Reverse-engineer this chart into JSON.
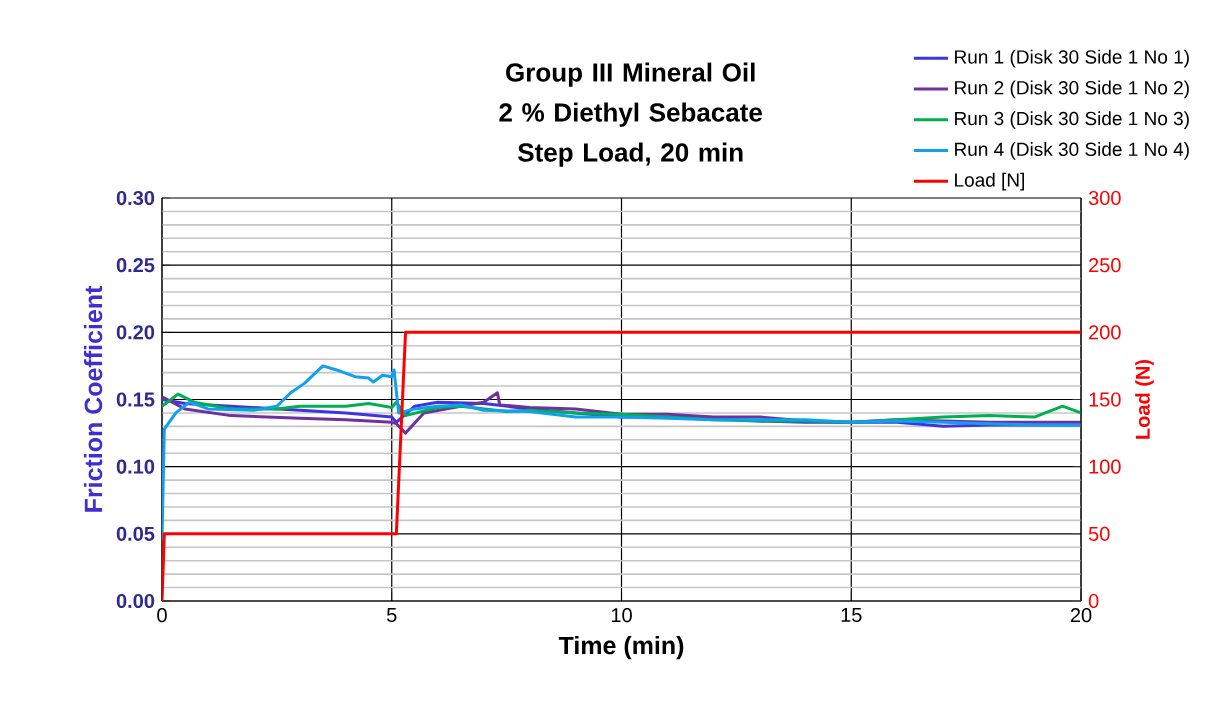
{
  "chart_data": {
    "type": "line",
    "title": "Group III Mineral Oil 2 % Diethyl Sebacate Step Load, 20 min",
    "xlabel": "Time (min)",
    "ylabel": "Friction Coefficient",
    "y2label": "Load (N)",
    "xlim": [
      0,
      20
    ],
    "xticks": [
      0,
      5,
      10,
      15,
      20
    ],
    "ylim": [
      0,
      0.3
    ],
    "yticks": [
      {
        "value": 0,
        "label": "0.00"
      },
      {
        "value": 0.05,
        "label": "0.05"
      },
      {
        "value": 0.1,
        "label": "0.10"
      },
      {
        "value": 0.15,
        "label": "0.15"
      },
      {
        "value": 0.2,
        "label": "0.20"
      },
      {
        "value": 0.25,
        "label": "0.25"
      },
      {
        "value": 0.3,
        "label": "0.30"
      }
    ],
    "y2lim": [
      0,
      300
    ],
    "y2ticks": [
      0,
      50,
      100,
      150,
      200,
      250,
      300
    ],
    "grid": true,
    "legend": "top right",
    "marker": "none",
    "line_style": "solid",
    "series": [
      {
        "name": "Run 1 (Disk 30 Side 1 No 1)",
        "color": "#4033e0",
        "x": [
          0,
          0.5,
          1.5,
          3,
          4,
          5,
          5.1,
          5.5,
          6,
          7,
          8,
          9,
          10,
          11,
          12,
          13,
          14,
          15,
          16,
          17,
          18,
          19,
          20
        ],
        "values": [
          0.15,
          0.147,
          null,
          0.142,
          0.14,
          0.137,
          0.133,
          0.145,
          0.148,
          0.147,
          0.143,
          0.14,
          0.137,
          0.137,
          0.136,
          0.134,
          0.133,
          0.133,
          0.133,
          0.13,
          0.131,
          0.131,
          0.131
        ]
      },
      {
        "name": "Run 2 (Disk 30 Side 1 No 2)",
        "color": "#7030a0",
        "x": [
          0,
          0.5,
          1.5,
          3,
          4,
          5,
          5.1,
          5.3,
          5.7,
          6.5,
          7,
          7.3,
          7.35,
          8,
          9,
          10,
          11,
          12,
          13,
          14,
          15,
          16,
          17,
          18,
          19,
          20
        ],
        "values": [
          0.152,
          0.143,
          0.138,
          0.136,
          0.135,
          0.133,
          0.132,
          0.125,
          0.14,
          0.145,
          0.148,
          0.155,
          0.146,
          0.144,
          0.143,
          0.139,
          0.139,
          0.137,
          0.137,
          0.134,
          0.133,
          0.135,
          0.134,
          0.133,
          0.133,
          0.133
        ]
      },
      {
        "name": "Run 3 (Disk 30 Side 1 No 3)",
        "color": "#00b050",
        "x": [
          0,
          0.35,
          0.7,
          1.5,
          2.5,
          3,
          4,
          4.5,
          5,
          5.1,
          5.3,
          6,
          6.5,
          7.5,
          8,
          9,
          10,
          11,
          12,
          13,
          14,
          15,
          16,
          17,
          18,
          19,
          19.6,
          20
        ],
        "values": [
          0.145,
          0.154,
          0.148,
          0.143,
          0.143,
          0.145,
          0.145,
          0.147,
          0.144,
          0.148,
          0.138,
          0.144,
          0.145,
          0.141,
          0.142,
          0.14,
          0.139,
          0.137,
          0.135,
          0.134,
          0.134,
          0.133,
          0.135,
          0.137,
          0.138,
          0.137,
          0.145,
          0.14
        ]
      },
      {
        "name": "Run 4 (Disk 30 Side 1 No 4)",
        "color": "#0fa0f0",
        "x": [
          0,
          0.05,
          0.3,
          0.6,
          1,
          2,
          2.5,
          2.8,
          3.1,
          3.5,
          3.8,
          4.2,
          4.5,
          4.6,
          4.8,
          5,
          5.05,
          5.15,
          5.5,
          6,
          6.5,
          7,
          8,
          9,
          10,
          11,
          12,
          13,
          14,
          15,
          16,
          17,
          18,
          19,
          20
        ],
        "values": [
          0.045,
          0.128,
          0.14,
          0.148,
          0.143,
          0.142,
          0.145,
          0.155,
          0.162,
          0.175,
          0.172,
          0.167,
          0.166,
          0.163,
          0.168,
          0.167,
          0.172,
          0.14,
          0.143,
          0.145,
          0.146,
          0.142,
          0.141,
          0.137,
          0.137,
          0.136,
          0.135,
          0.135,
          0.135,
          0.133,
          0.134,
          0.133,
          0.132,
          0.131,
          0.131
        ]
      },
      {
        "name": "Load [N]",
        "color": "#ff0000",
        "axis": "y2",
        "x": [
          0,
          0.05,
          5.1,
          5.3,
          20
        ],
        "values": [
          0,
          50,
          50,
          200,
          200
        ]
      }
    ]
  }
}
